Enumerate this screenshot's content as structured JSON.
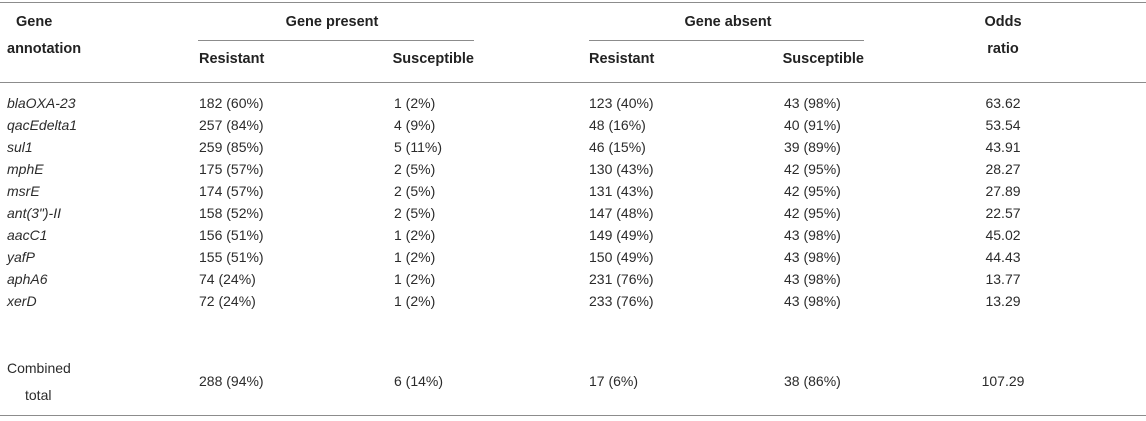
{
  "headers": {
    "gene_annotation_line1": "Gene",
    "gene_annotation_line2": "annotation",
    "gene_present": "Gene present",
    "gene_absent": "Gene absent",
    "odds_line1": "Odds",
    "odds_line2": "ratio",
    "resistant": "Resistant",
    "susceptible": "Susceptible"
  },
  "rows": [
    {
      "gene": "blaOXA-23",
      "present_resistant": "182 (60%)",
      "present_susceptible": "1 (2%)",
      "absent_resistant": "123 (40%)",
      "absent_susceptible": "43 (98%)",
      "odds_ratio": "63.62"
    },
    {
      "gene": "qacEdelta1",
      "present_resistant": "257 (84%)",
      "present_susceptible": "4 (9%)",
      "absent_resistant": "48 (16%)",
      "absent_susceptible": "40 (91%)",
      "odds_ratio": "53.54"
    },
    {
      "gene": "sul1",
      "present_resistant": "259 (85%)",
      "present_susceptible": "5 (11%)",
      "absent_resistant": "46 (15%)",
      "absent_susceptible": "39 (89%)",
      "odds_ratio": "43.91"
    },
    {
      "gene": "mphE",
      "present_resistant": "175 (57%)",
      "present_susceptible": "2 (5%)",
      "absent_resistant": "130 (43%)",
      "absent_susceptible": "42 (95%)",
      "odds_ratio": "28.27"
    },
    {
      "gene": "msrE",
      "present_resistant": "174 (57%)",
      "present_susceptible": "2 (5%)",
      "absent_resistant": "131 (43%)",
      "absent_susceptible": "42 (95%)",
      "odds_ratio": "27.89"
    },
    {
      "gene": "ant(3\")-II",
      "present_resistant": "158 (52%)",
      "present_susceptible": "2 (5%)",
      "absent_resistant": "147 (48%)",
      "absent_susceptible": "42 (95%)",
      "odds_ratio": "22.57"
    },
    {
      "gene": "aacC1",
      "present_resistant": "156 (51%)",
      "present_susceptible": "1 (2%)",
      "absent_resistant": "149 (49%)",
      "absent_susceptible": "43 (98%)",
      "odds_ratio": "45.02"
    },
    {
      "gene": "yafP",
      "present_resistant": "155 (51%)",
      "present_susceptible": "1 (2%)",
      "absent_resistant": "150 (49%)",
      "absent_susceptible": "43 (98%)",
      "odds_ratio": "44.43"
    },
    {
      "gene": "aphA6",
      "present_resistant": "74 (24%)",
      "present_susceptible": "1 (2%)",
      "absent_resistant": "231 (76%)",
      "absent_susceptible": "43 (98%)",
      "odds_ratio": "13.77"
    },
    {
      "gene": "xerD",
      "present_resistant": "72 (24%)",
      "present_susceptible": "1 (2%)",
      "absent_resistant": "233 (76%)",
      "absent_susceptible": "43 (98%)",
      "odds_ratio": "13.29"
    }
  ],
  "total": {
    "label_line1": "Combined",
    "label_line2": "total",
    "present_resistant": "288 (94%)",
    "present_susceptible": "6 (14%)",
    "absent_resistant": "17 (6%)",
    "absent_susceptible": "38 (86%)",
    "odds_ratio": "107.29"
  }
}
